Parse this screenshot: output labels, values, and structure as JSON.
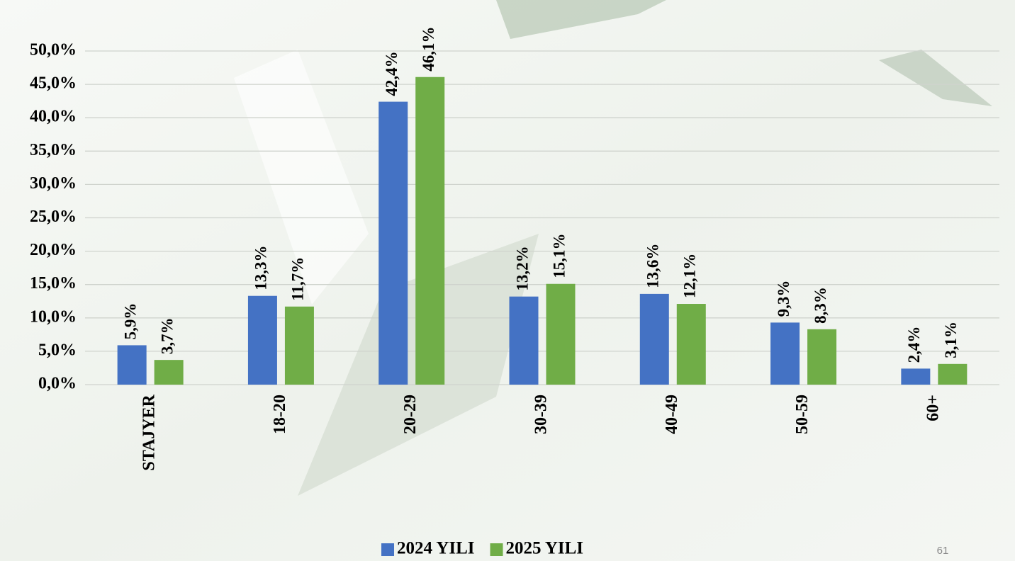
{
  "chart_data": {
    "type": "bar",
    "categories": [
      "STAJYER",
      "18-20",
      "20-29",
      "30-39",
      "40-49",
      "50-59",
      "60+"
    ],
    "series": [
      {
        "name": "2024 YILI",
        "color": "#4472c4",
        "values": [
          5.9,
          13.3,
          42.4,
          13.2,
          13.6,
          9.3,
          2.4
        ],
        "value_labels": [
          "5,9%",
          "13,3%",
          "42,4%",
          "13,2%",
          "13,6%",
          "9,3%",
          "2,4%"
        ]
      },
      {
        "name": "2025 YILI",
        "color": "#70ad47",
        "values": [
          3.7,
          11.7,
          46.1,
          15.1,
          12.1,
          8.3,
          3.1
        ],
        "value_labels": [
          "3,7%",
          "11,7%",
          "46,1%",
          "15,1%",
          "12,1%",
          "8,3%",
          "3,1%"
        ]
      }
    ],
    "ylim": [
      0,
      50
    ],
    "yticks": [
      {
        "value": 0,
        "label": "0,0%"
      },
      {
        "value": 5,
        "label": "5,0%"
      },
      {
        "value": 10,
        "label": "10,0%"
      },
      {
        "value": 15,
        "label": "15,0%"
      },
      {
        "value": 20,
        "label": "20,0%"
      },
      {
        "value": 25,
        "label": "25,0%"
      },
      {
        "value": 30,
        "label": "30,0%"
      },
      {
        "value": 35,
        "label": "35,0%"
      },
      {
        "value": 40,
        "label": "40,0%"
      },
      {
        "value": 45,
        "label": "45,0%"
      },
      {
        "value": 50,
        "label": "50,0%"
      }
    ],
    "grid": true,
    "legend": "bottom"
  },
  "page_number": "61"
}
